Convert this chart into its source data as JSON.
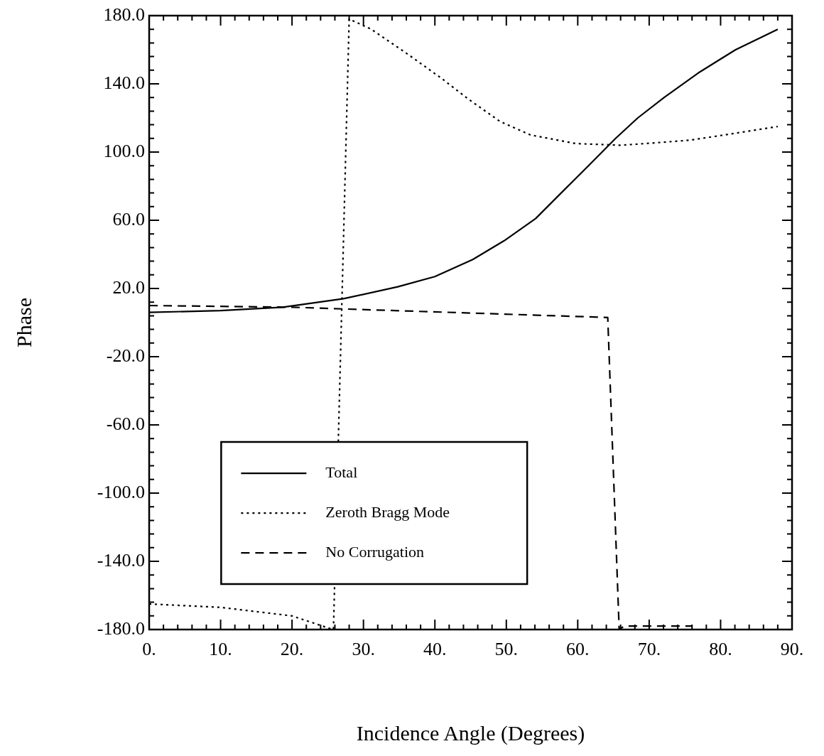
{
  "chart_data": {
    "type": "line",
    "xlabel": "Incidence Angle (Degrees)",
    "ylabel": "Phase",
    "xlim": [
      0,
      90
    ],
    "ylim": [
      -180,
      180
    ],
    "xticks": [
      {
        "value": 0,
        "label": "0."
      },
      {
        "value": 2,
        "label": null
      },
      {
        "value": 4,
        "label": null
      },
      {
        "value": 6,
        "label": null
      },
      {
        "value": 8,
        "label": null
      },
      {
        "value": 10,
        "label": "10."
      },
      {
        "value": 12,
        "label": null
      },
      {
        "value": 14,
        "label": null
      },
      {
        "value": 16,
        "label": null
      },
      {
        "value": 18,
        "label": null
      },
      {
        "value": 20,
        "label": "20."
      },
      {
        "value": 22,
        "label": null
      },
      {
        "value": 24,
        "label": null
      },
      {
        "value": 26,
        "label": null
      },
      {
        "value": 28,
        "label": null
      },
      {
        "value": 30,
        "label": "30."
      },
      {
        "value": 32,
        "label": null
      },
      {
        "value": 34,
        "label": null
      },
      {
        "value": 36,
        "label": null
      },
      {
        "value": 38,
        "label": null
      },
      {
        "value": 40,
        "label": "40."
      },
      {
        "value": 42,
        "label": null
      },
      {
        "value": 44,
        "label": null
      },
      {
        "value": 46,
        "label": null
      },
      {
        "value": 48,
        "label": null
      },
      {
        "value": 50,
        "label": "50."
      },
      {
        "value": 52,
        "label": null
      },
      {
        "value": 54,
        "label": null
      },
      {
        "value": 56,
        "label": null
      },
      {
        "value": 58,
        "label": null
      },
      {
        "value": 60,
        "label": "60."
      },
      {
        "value": 62,
        "label": null
      },
      {
        "value": 64,
        "label": null
      },
      {
        "value": 66,
        "label": null
      },
      {
        "value": 68,
        "label": null
      },
      {
        "value": 70,
        "label": "70."
      },
      {
        "value": 72,
        "label": null
      },
      {
        "value": 74,
        "label": null
      },
      {
        "value": 76,
        "label": null
      },
      {
        "value": 78,
        "label": null
      },
      {
        "value": 80,
        "label": "80."
      },
      {
        "value": 82,
        "label": null
      },
      {
        "value": 84,
        "label": null
      },
      {
        "value": 86,
        "label": null
      },
      {
        "value": 88,
        "label": null
      },
      {
        "value": 90,
        "label": "90."
      }
    ],
    "yticks": [
      {
        "value": -180,
        "label": "-180.0"
      },
      {
        "value": -172,
        "label": null
      },
      {
        "value": -164,
        "label": null
      },
      {
        "value": -156,
        "label": null
      },
      {
        "value": -148,
        "label": null
      },
      {
        "value": -140,
        "label": "-140.0"
      },
      {
        "value": -132,
        "label": null
      },
      {
        "value": -124,
        "label": null
      },
      {
        "value": -116,
        "label": null
      },
      {
        "value": -108,
        "label": null
      },
      {
        "value": -100,
        "label": "-100.0"
      },
      {
        "value": -92,
        "label": null
      },
      {
        "value": -84,
        "label": null
      },
      {
        "value": -76,
        "label": null
      },
      {
        "value": -68,
        "label": null
      },
      {
        "value": -60,
        "label": "-60.0"
      },
      {
        "value": -52,
        "label": null
      },
      {
        "value": -44,
        "label": null
      },
      {
        "value": -36,
        "label": null
      },
      {
        "value": -28,
        "label": null
      },
      {
        "value": -20,
        "label": "-20.0"
      },
      {
        "value": -12,
        "label": null
      },
      {
        "value": -4,
        "label": null
      },
      {
        "value": 4,
        "label": null
      },
      {
        "value": 12,
        "label": null
      },
      {
        "value": 20,
        "label": "20.0"
      },
      {
        "value": 28,
        "label": null
      },
      {
        "value": 36,
        "label": null
      },
      {
        "value": 44,
        "label": null
      },
      {
        "value": 52,
        "label": null
      },
      {
        "value": 60,
        "label": "60.0"
      },
      {
        "value": 68,
        "label": null
      },
      {
        "value": 76,
        "label": null
      },
      {
        "value": 84,
        "label": null
      },
      {
        "value": 92,
        "label": null
      },
      {
        "value": 100,
        "label": "100.0"
      },
      {
        "value": 108,
        "label": null
      },
      {
        "value": 116,
        "label": null
      },
      {
        "value": 124,
        "label": null
      },
      {
        "value": 132,
        "label": null
      },
      {
        "value": 140,
        "label": "140.0"
      },
      {
        "value": 148,
        "label": null
      },
      {
        "value": 156,
        "label": null
      },
      {
        "value": 164,
        "label": null
      },
      {
        "value": 172,
        "label": null
      },
      {
        "value": 180,
        "label": "180.0"
      }
    ],
    "legend": "bottom left",
    "series": [
      {
        "name": "Total",
        "color": "#000000",
        "line_style": "solid",
        "x": [
          0,
          10,
          18.7,
          27.2,
          34.8,
          40,
          45.3,
          49.7,
          54.1,
          57.2,
          61.5,
          65.3,
          68.4,
          72.1,
          77.1,
          82.1,
          88
        ],
        "values": [
          6,
          7,
          9,
          14,
          21,
          27,
          37,
          48,
          61,
          74,
          92,
          108,
          120,
          132,
          147,
          160,
          172
        ]
      },
      {
        "name": "Zeroth Bragg Mode",
        "color": "#000000",
        "line_style": "dotted",
        "x": [
          0,
          10,
          20,
          25,
          25.8,
          28,
          31.1,
          36,
          41,
          44.7,
          49.1,
          53.4,
          59.7,
          65.9,
          69.6,
          75.8,
          82,
          88
        ],
        "values": [
          -165,
          -167,
          -172,
          -179,
          -180,
          178,
          172,
          158,
          143,
          131,
          118,
          110,
          105,
          104,
          105,
          107,
          111,
          115
        ]
      },
      {
        "name": "No Corrugation",
        "color": "#000000",
        "line_style": "dashed",
        "x": [
          0,
          20,
          27.2,
          64.2,
          65.8,
          66.5,
          76
        ],
        "values": [
          10,
          9,
          8,
          3,
          -180,
          -178,
          -178
        ]
      }
    ]
  }
}
